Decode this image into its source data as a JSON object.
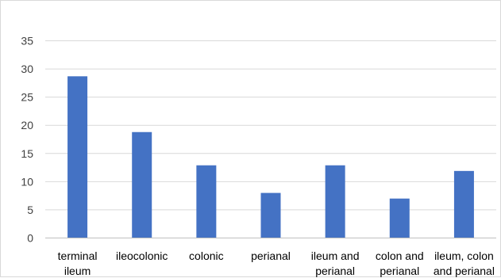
{
  "chart_data": {
    "type": "bar",
    "categories": [
      [
        "terminal",
        "ileum"
      ],
      [
        "ileocolonic"
      ],
      [
        "colonic"
      ],
      [
        "perianal"
      ],
      [
        "ileum and",
        "perianal"
      ],
      [
        "colon and",
        "perianal"
      ],
      [
        "ileum, colon",
        "and perianal"
      ]
    ],
    "values": [
      28.7,
      18.8,
      12.9,
      8.0,
      12.9,
      7.0,
      11.9
    ],
    "y_ticks": [
      0,
      5,
      10,
      15,
      20,
      25,
      30,
      35
    ],
    "ylim": [
      0,
      35
    ],
    "grid": true,
    "legend": "none",
    "title": "",
    "xlabel": "",
    "ylabel": "",
    "colors": {
      "bar": "#4472c4",
      "grid": "#d9d9d9",
      "axis": "#bfbfbf"
    }
  }
}
